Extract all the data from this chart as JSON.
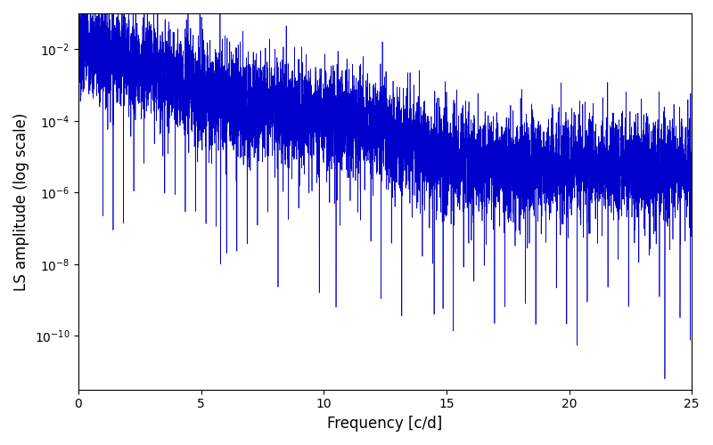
{
  "title": "",
  "xlabel": "Frequency [c/d]",
  "ylabel": "LS amplitude (log scale)",
  "line_color": "#0000CC",
  "line_width": 0.5,
  "xlim": [
    0,
    25
  ],
  "ylim_log_min": -11.5,
  "ylim_log_max": -1,
  "freq_max": 25.0,
  "n_points": 8000,
  "seed": 7,
  "background_color": "#ffffff",
  "figsize": [
    8.0,
    5.0
  ],
  "dpi": 100
}
